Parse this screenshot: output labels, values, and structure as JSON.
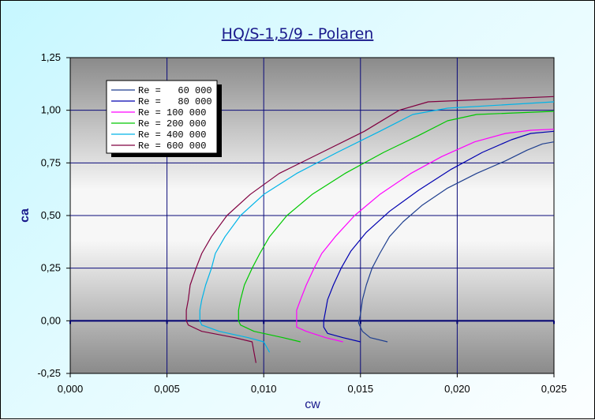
{
  "chart_data": {
    "type": "line",
    "title": "HQ/S-1,5/9 - Polaren",
    "xlabel": "cw",
    "ylabel": "ca",
    "xlim": [
      0,
      0.025
    ],
    "ylim": [
      -0.25,
      1.25
    ],
    "xticks": [
      0,
      0.005,
      0.01,
      0.015,
      0.02,
      0.025
    ],
    "yticks": [
      -0.25,
      0,
      0.25,
      0.5,
      0.75,
      1.0,
      1.25
    ],
    "xtick_labels": [
      "0,000",
      "0,005",
      "0,010",
      "0,015",
      "0,020",
      "0,025"
    ],
    "ytick_labels": [
      "-0,25",
      "0,00",
      "0,25",
      "0,50",
      "0,75",
      "1,00",
      "1,25"
    ],
    "grid": true,
    "legend_position": "top-left",
    "series": [
      {
        "name": "Re =   60 000",
        "color": "#1f3f8f",
        "points": [
          [
            0.0164,
            -0.1
          ],
          [
            0.0155,
            -0.08
          ],
          [
            0.0151,
            -0.05
          ],
          [
            0.0149,
            -0.01
          ],
          [
            0.015,
            0.03
          ],
          [
            0.0151,
            0.1
          ],
          [
            0.0153,
            0.17
          ],
          [
            0.0156,
            0.25
          ],
          [
            0.016,
            0.32
          ],
          [
            0.0165,
            0.4
          ],
          [
            0.0172,
            0.47
          ],
          [
            0.0182,
            0.55
          ],
          [
            0.0195,
            0.63
          ],
          [
            0.021,
            0.7
          ],
          [
            0.0225,
            0.76
          ],
          [
            0.0236,
            0.81
          ],
          [
            0.0244,
            0.84
          ],
          [
            0.025,
            0.85
          ]
        ]
      },
      {
        "name": "Re =   80 000",
        "color": "#0000b0",
        "points": [
          [
            0.015,
            -0.1
          ],
          [
            0.0141,
            -0.08
          ],
          [
            0.0133,
            -0.06
          ],
          [
            0.0131,
            -0.03
          ],
          [
            0.0131,
            0.0
          ],
          [
            0.0132,
            0.05
          ],
          [
            0.0133,
            0.1
          ],
          [
            0.0136,
            0.17
          ],
          [
            0.014,
            0.25
          ],
          [
            0.0145,
            0.33
          ],
          [
            0.0153,
            0.42
          ],
          [
            0.0165,
            0.52
          ],
          [
            0.018,
            0.62
          ],
          [
            0.0197,
            0.72
          ],
          [
            0.0213,
            0.8
          ],
          [
            0.0228,
            0.86
          ],
          [
            0.0238,
            0.89
          ],
          [
            0.025,
            0.9
          ]
        ]
      },
      {
        "name": "Re = 100 000",
        "color": "#ff00ff",
        "points": [
          [
            0.0141,
            -0.1
          ],
          [
            0.0132,
            -0.08
          ],
          [
            0.0122,
            -0.05
          ],
          [
            0.0117,
            -0.03
          ],
          [
            0.0117,
            0.0
          ],
          [
            0.0117,
            0.05
          ],
          [
            0.0119,
            0.1
          ],
          [
            0.0122,
            0.17
          ],
          [
            0.0126,
            0.25
          ],
          [
            0.013,
            0.32
          ],
          [
            0.0137,
            0.4
          ],
          [
            0.0147,
            0.5
          ],
          [
            0.016,
            0.6
          ],
          [
            0.0176,
            0.7
          ],
          [
            0.0192,
            0.78
          ],
          [
            0.0209,
            0.85
          ],
          [
            0.0225,
            0.89
          ],
          [
            0.0238,
            0.905
          ],
          [
            0.025,
            0.91
          ]
        ]
      },
      {
        "name": "Re = 200 000",
        "color": "#00c800",
        "points": [
          [
            0.0119,
            -0.1
          ],
          [
            0.011,
            -0.08
          ],
          [
            0.0095,
            -0.05
          ],
          [
            0.0088,
            -0.02
          ],
          [
            0.0087,
            0.0
          ],
          [
            0.0087,
            0.05
          ],
          [
            0.0088,
            0.1
          ],
          [
            0.009,
            0.17
          ],
          [
            0.0094,
            0.25
          ],
          [
            0.0098,
            0.32
          ],
          [
            0.0103,
            0.4
          ],
          [
            0.0112,
            0.5
          ],
          [
            0.0125,
            0.6
          ],
          [
            0.0142,
            0.7
          ],
          [
            0.0162,
            0.8
          ],
          [
            0.018,
            0.88
          ],
          [
            0.0195,
            0.95
          ],
          [
            0.021,
            0.98
          ],
          [
            0.025,
            0.995
          ]
        ]
      },
      {
        "name": "Re = 400 000",
        "color": "#00b4e8",
        "points": [
          [
            0.0103,
            -0.15
          ],
          [
            0.01,
            -0.1
          ],
          [
            0.0092,
            -0.08
          ],
          [
            0.0077,
            -0.05
          ],
          [
            0.0068,
            -0.02
          ],
          [
            0.0067,
            0.0
          ],
          [
            0.0067,
            0.05
          ],
          [
            0.0068,
            0.1
          ],
          [
            0.007,
            0.17
          ],
          [
            0.0073,
            0.25
          ],
          [
            0.0075,
            0.32
          ],
          [
            0.008,
            0.4
          ],
          [
            0.0088,
            0.5
          ],
          [
            0.01,
            0.6
          ],
          [
            0.0117,
            0.7
          ],
          [
            0.0138,
            0.8
          ],
          [
            0.016,
            0.9
          ],
          [
            0.0177,
            0.98
          ],
          [
            0.0195,
            1.01
          ],
          [
            0.025,
            1.04
          ]
        ]
      },
      {
        "name": "Re = 600 000",
        "color": "#800040",
        "points": [
          [
            0.0096,
            -0.2
          ],
          [
            0.0095,
            -0.15
          ],
          [
            0.0094,
            -0.1
          ],
          [
            0.0085,
            -0.08
          ],
          [
            0.0068,
            -0.05
          ],
          [
            0.0061,
            -0.02
          ],
          [
            0.006,
            0.0
          ],
          [
            0.006,
            0.05
          ],
          [
            0.0061,
            0.1
          ],
          [
            0.0062,
            0.17
          ],
          [
            0.0065,
            0.25
          ],
          [
            0.0068,
            0.32
          ],
          [
            0.0073,
            0.4
          ],
          [
            0.0081,
            0.5
          ],
          [
            0.0093,
            0.6
          ],
          [
            0.0108,
            0.7
          ],
          [
            0.013,
            0.8
          ],
          [
            0.0152,
            0.9
          ],
          [
            0.017,
            1.0
          ],
          [
            0.0185,
            1.04
          ],
          [
            0.025,
            1.065
          ]
        ]
      }
    ]
  }
}
